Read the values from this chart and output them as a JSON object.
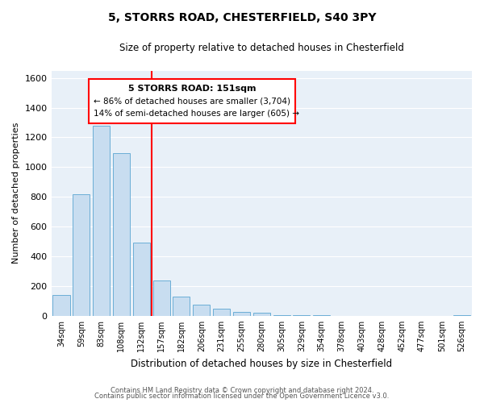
{
  "title": "5, STORRS ROAD, CHESTERFIELD, S40 3PY",
  "subtitle": "Size of property relative to detached houses in Chesterfield",
  "xlabel": "Distribution of detached houses by size in Chesterfield",
  "ylabel": "Number of detached properties",
  "bar_labels": [
    "34sqm",
    "59sqm",
    "83sqm",
    "108sqm",
    "132sqm",
    "157sqm",
    "182sqm",
    "206sqm",
    "231sqm",
    "255sqm",
    "280sqm",
    "305sqm",
    "329sqm",
    "354sqm",
    "378sqm",
    "403sqm",
    "428sqm",
    "452sqm",
    "477sqm",
    "501sqm",
    "526sqm"
  ],
  "bar_values": [
    140,
    815,
    1280,
    1095,
    490,
    240,
    130,
    75,
    48,
    25,
    18,
    5,
    3,
    2,
    1,
    1,
    1,
    0,
    0,
    0,
    3
  ],
  "bar_color": "#c8ddf0",
  "bar_edge_color": "#6baed6",
  "ylim": [
    0,
    1650
  ],
  "yticks": [
    0,
    200,
    400,
    600,
    800,
    1000,
    1200,
    1400,
    1600
  ],
  "property_line_label": "5 STORRS ROAD: 151sqm",
  "annotation_line1": "← 86% of detached houses are smaller (3,704)",
  "annotation_line2": "14% of semi-detached houses are larger (605) →",
  "footer_line1": "Contains HM Land Registry data © Crown copyright and database right 2024.",
  "footer_line2": "Contains public sector information licensed under the Open Government Licence v3.0.",
  "background_color": "#ffffff",
  "plot_bg_color": "#e8f0f8",
  "grid_color": "#ffffff"
}
